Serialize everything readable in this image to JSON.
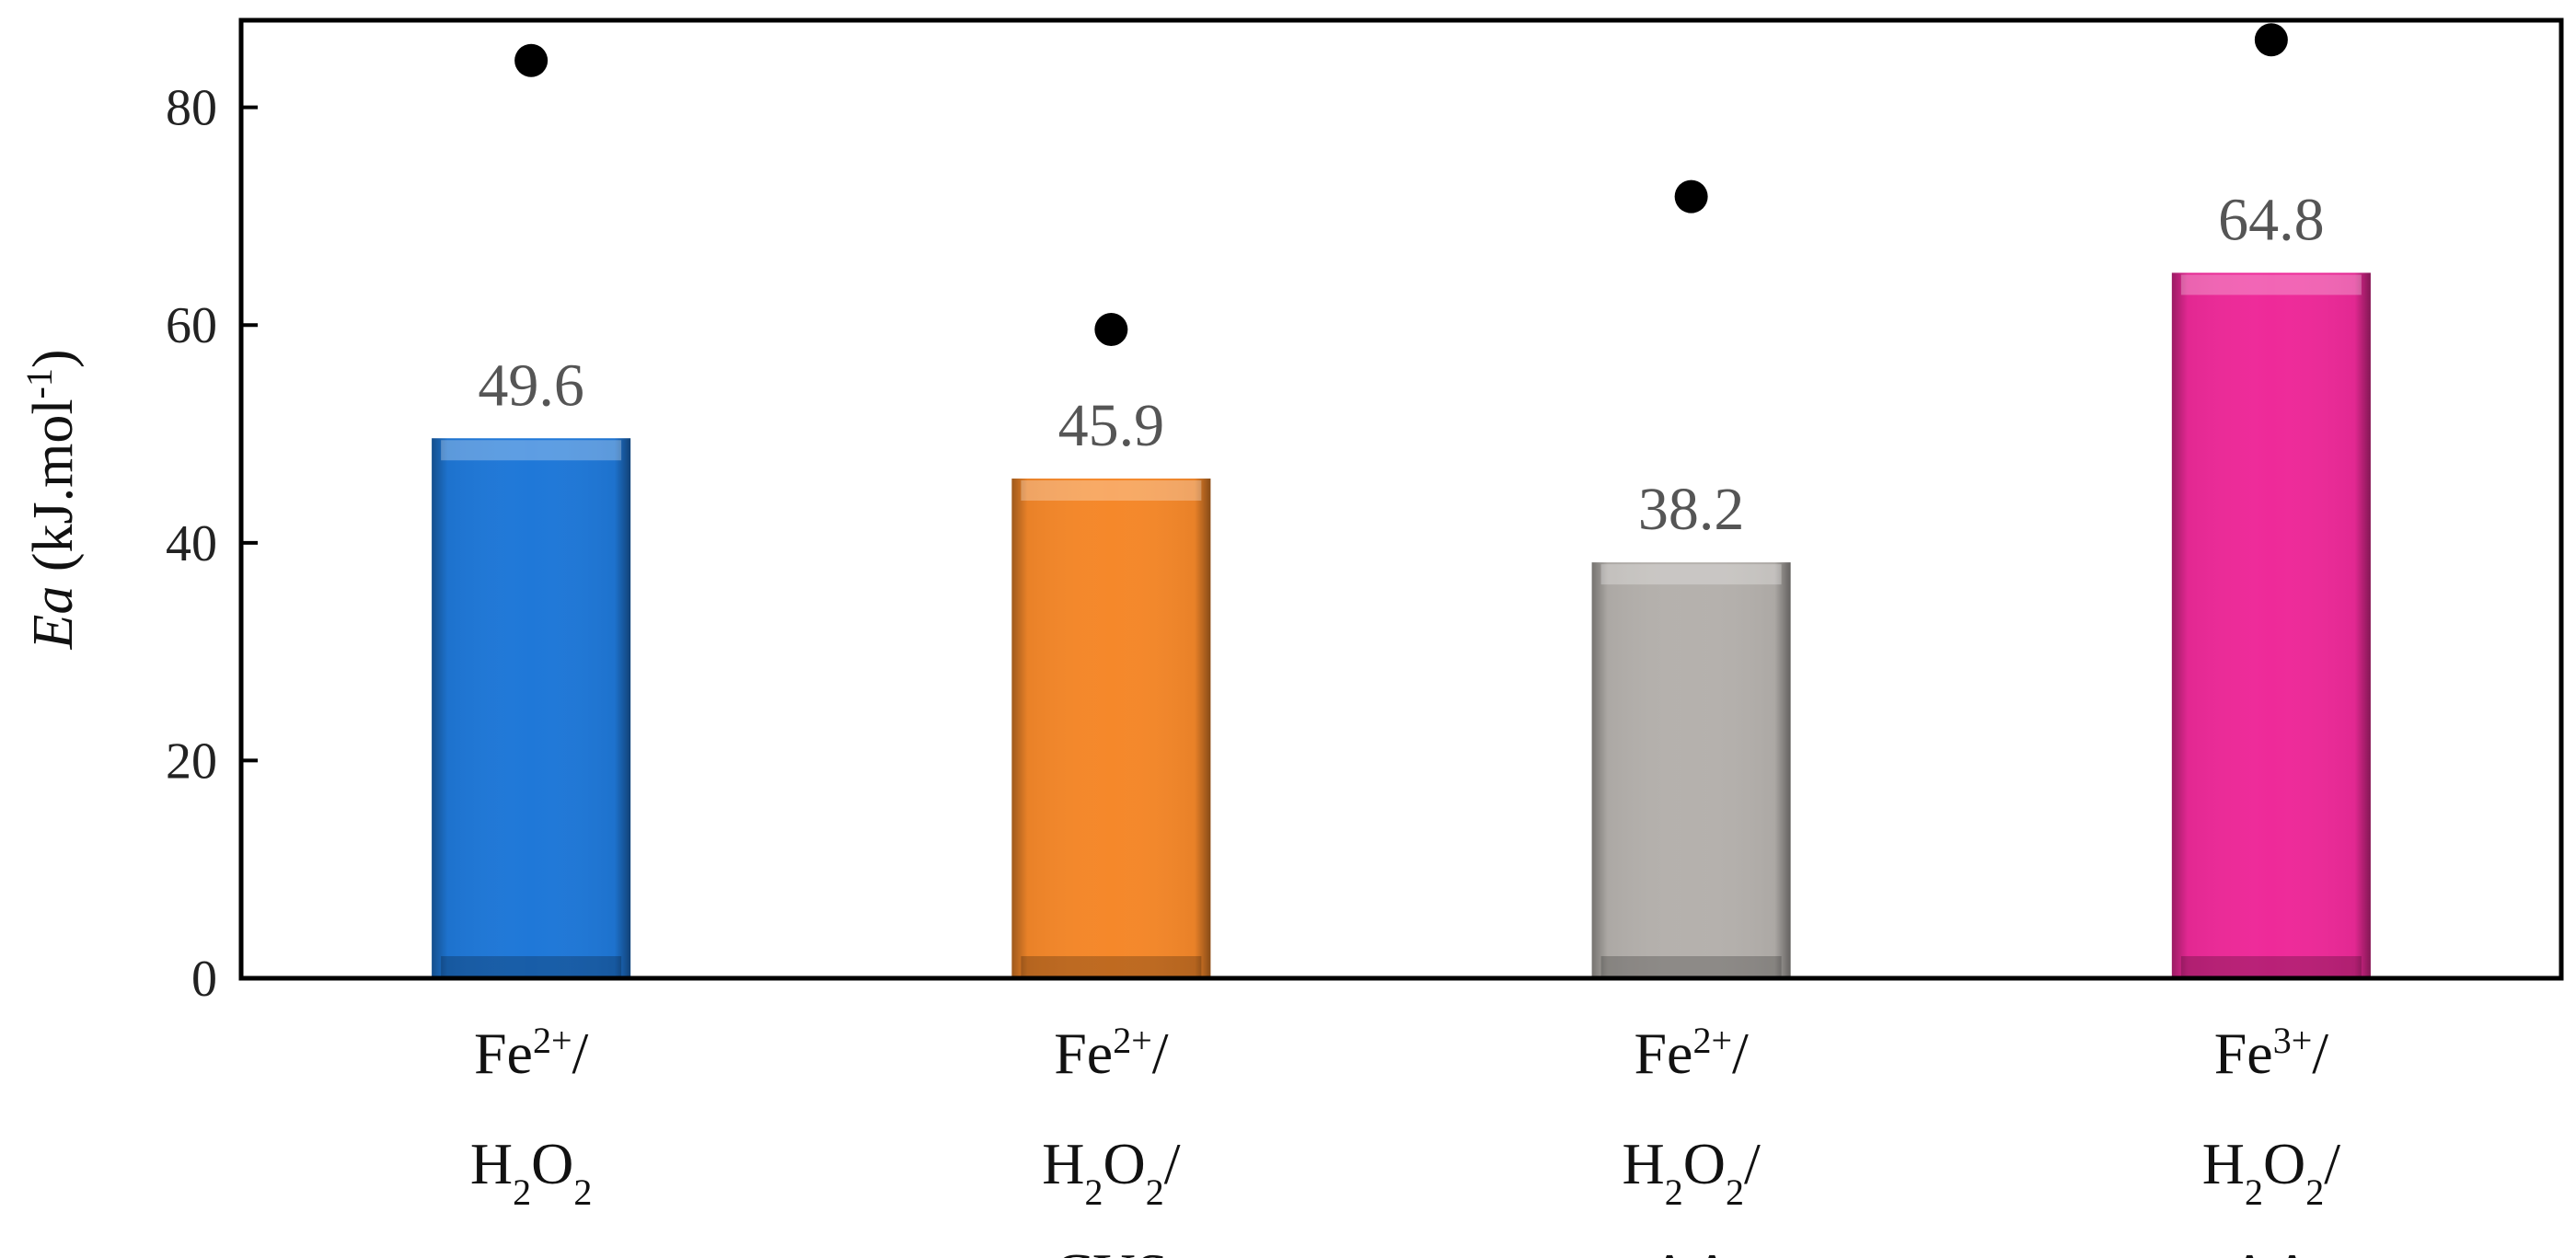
{
  "chart_data": {
    "type": "bar",
    "categories": [
      {
        "lines": [
          [
            {
              "t": "Fe"
            },
            {
              "t": "2+",
              "sup": true
            },
            {
              "t": "/"
            }
          ],
          [
            {
              "t": "H"
            },
            {
              "t": "2",
              "sub": true
            },
            {
              "t": "O"
            },
            {
              "t": "2",
              "sub": true
            }
          ]
        ]
      },
      {
        "lines": [
          [
            {
              "t": "Fe"
            },
            {
              "t": "2+",
              "sup": true
            },
            {
              "t": "/"
            }
          ],
          [
            {
              "t": "H"
            },
            {
              "t": "2",
              "sub": true
            },
            {
              "t": "O"
            },
            {
              "t": "2",
              "sub": true
            },
            {
              "t": "/"
            }
          ],
          [
            {
              "t": "CYS"
            }
          ]
        ]
      },
      {
        "lines": [
          [
            {
              "t": "Fe"
            },
            {
              "t": "2+",
              "sup": true
            },
            {
              "t": "/"
            }
          ],
          [
            {
              "t": "H"
            },
            {
              "t": "2",
              "sub": true
            },
            {
              "t": "O"
            },
            {
              "t": "2",
              "sub": true
            },
            {
              "t": "/"
            }
          ],
          [
            {
              "t": "AA"
            }
          ]
        ]
      },
      {
        "lines": [
          [
            {
              "t": "Fe"
            },
            {
              "t": "3+",
              "sup": true
            },
            {
              "t": "/"
            }
          ],
          [
            {
              "t": "H"
            },
            {
              "t": "2",
              "sub": true
            },
            {
              "t": "O"
            },
            {
              "t": "2",
              "sub": true
            },
            {
              "t": "/"
            }
          ],
          [
            {
              "t": "AA"
            }
          ]
        ]
      }
    ],
    "values": [
      49.6,
      45.9,
      38.2,
      64.8
    ],
    "value_labels": [
      "49.6",
      "45.9",
      "38.2",
      "64.8"
    ],
    "points": [
      84.3,
      59.6,
      71.8,
      86.2
    ],
    "colors": [
      "#1f78d8",
      "#f5882a",
      "#b5b1ad",
      "#ee2a99"
    ],
    "point_color": "#000000",
    "ylabel": [
      {
        "t": "Ea",
        "italic": true
      },
      {
        "t": " (kJ.mol"
      },
      {
        "t": "-1",
        "sup": true
      },
      {
        "t": ")"
      }
    ],
    "ylim": [
      0,
      88
    ],
    "yticks": [
      0,
      20,
      40,
      60,
      80
    ],
    "grid": false,
    "legend": "none"
  }
}
